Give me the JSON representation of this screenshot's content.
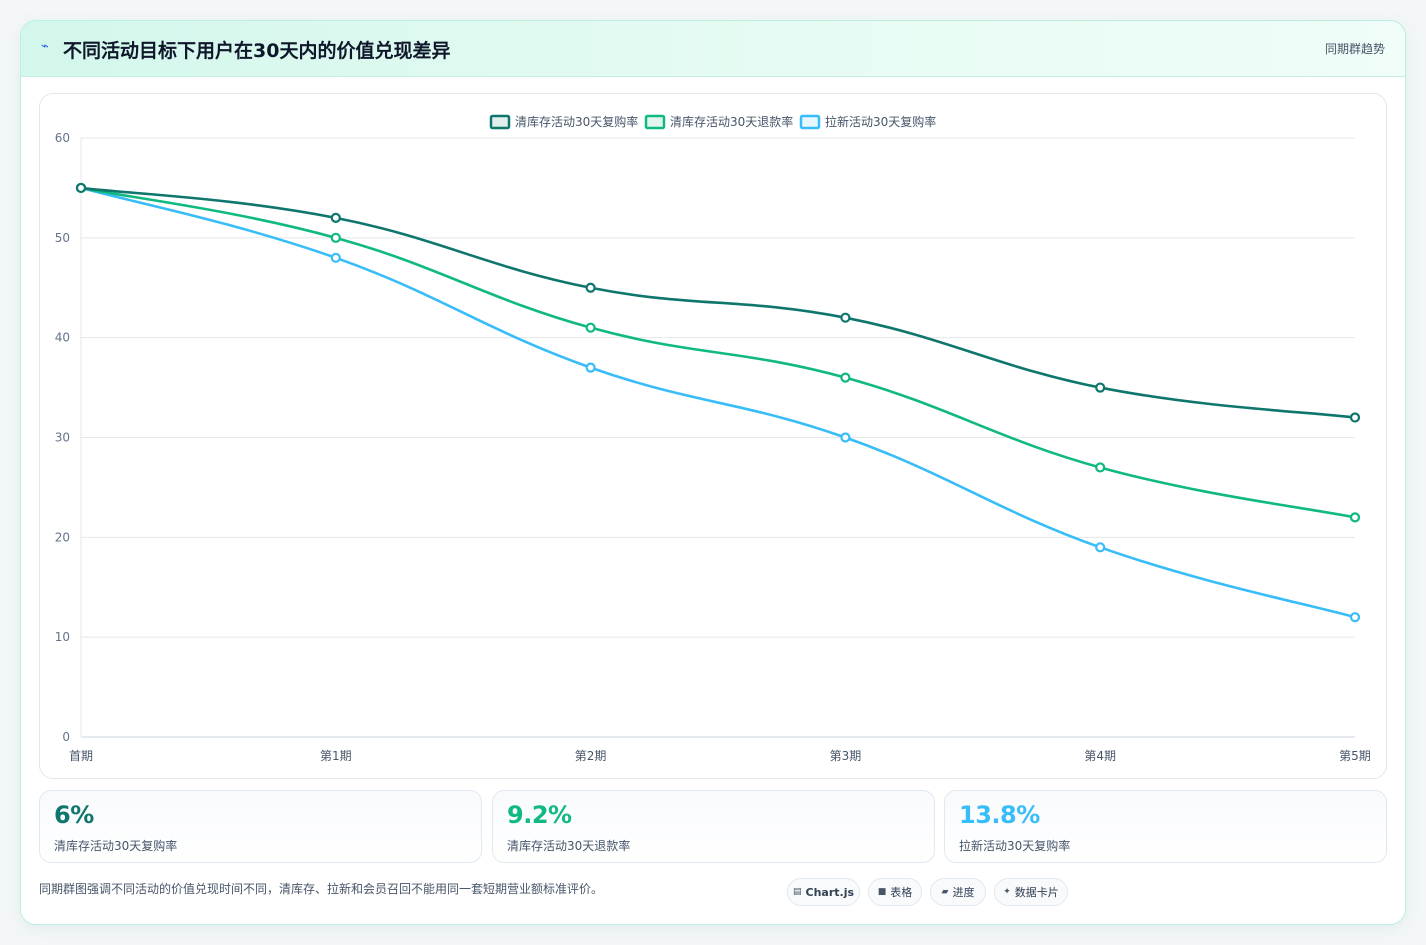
{
  "header": {
    "icon": "bolt-icon",
    "title": "不同活动目标下用户在30天内的价值兑现差异",
    "tag": "同期群趋势"
  },
  "chart_data": {
    "type": "line",
    "categories": [
      "首期",
      "第1期",
      "第2期",
      "第3期",
      "第4期",
      "第5期"
    ],
    "series": [
      {
        "name": "清库存活动30天复购率",
        "values": [
          55,
          52,
          45,
          42,
          35,
          32
        ],
        "color": "#0f766e"
      },
      {
        "name": "清库存活动30天退款率",
        "values": [
          55,
          50,
          41,
          36,
          27,
          22
        ],
        "color": "#10b981"
      },
      {
        "name": "拉新活动30天复购率",
        "values": [
          55,
          48,
          37,
          30,
          19,
          12
        ],
        "color": "#38bdf8"
      }
    ],
    "ylim": [
      0,
      60
    ],
    "yticks": [
      0,
      10,
      20,
      30,
      40,
      50,
      60
    ],
    "legend": "top-center",
    "grid": true,
    "smooth": true
  },
  "kpis": [
    {
      "value": "6%",
      "label": "清库存活动30天复购率",
      "color": "#0f766e"
    },
    {
      "value": "9.2%",
      "label": "清库存活动30天退款率",
      "color": "#10b981"
    },
    {
      "value": "13.8%",
      "label": "拉新活动30天复购率",
      "color": "#38bdf8"
    }
  ],
  "note": "同期群图强调不同活动的价值兑现时间不同，清库存、拉新和会员召回不能用同一套短期营业额标准评价。",
  "pills": [
    {
      "icon": "chart-icon",
      "glyph": "▤",
      "label": "Chart.js"
    },
    {
      "icon": "table-icon",
      "glyph": "■",
      "label": "表格"
    },
    {
      "icon": "progress-icon",
      "glyph": "▰",
      "label": "进度"
    },
    {
      "icon": "sparkle-icon",
      "glyph": "✦",
      "label": "数据卡片"
    }
  ]
}
